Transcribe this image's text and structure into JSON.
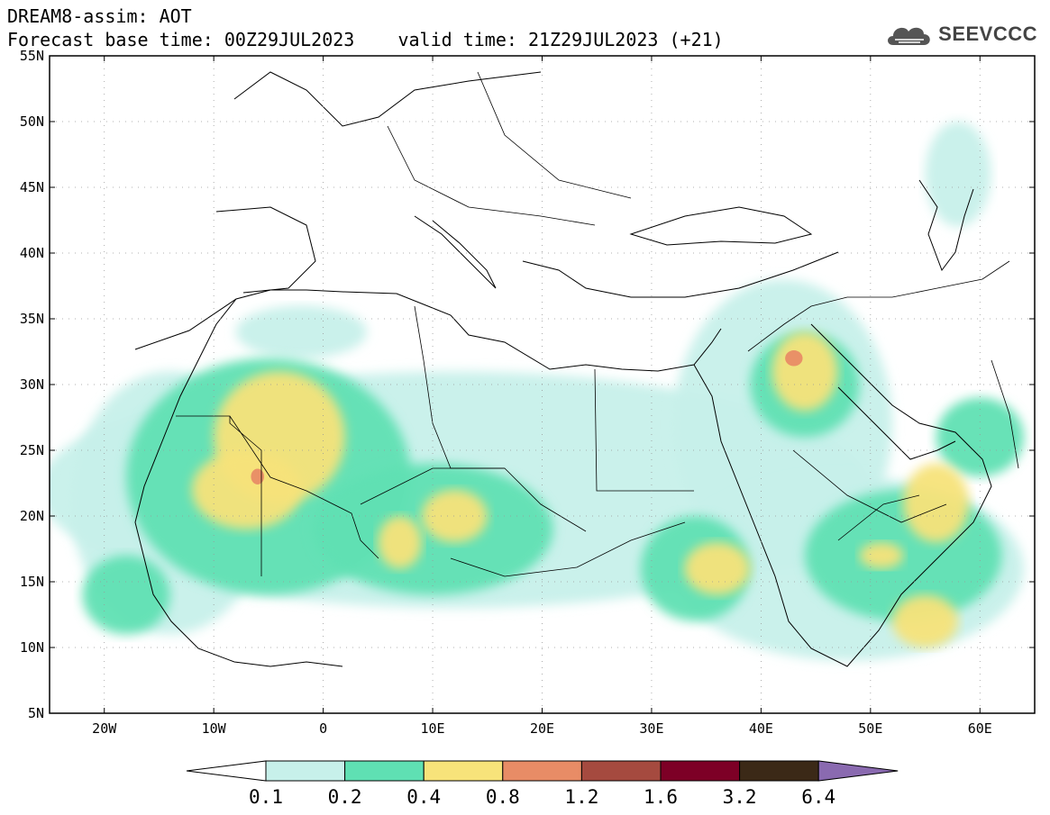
{
  "header": {
    "line1": "DREAM8-assim: AOT",
    "line2": "Forecast base time: 00Z29JUL2023    valid time: 21Z29JUL2023 (+21)",
    "logo_text": "SEEVCCC",
    "logo_icon": "cloud-icon"
  },
  "map": {
    "lat_range": [
      5,
      55
    ],
    "lon_range": [
      -25,
      65
    ],
    "lat_labels": [
      "55N",
      "50N",
      "45N",
      "40N",
      "35N",
      "30N",
      "25N",
      "20N",
      "15N",
      "10N",
      "5N"
    ],
    "lon_labels": [
      "20W",
      "10W",
      "0",
      "10E",
      "20E",
      "30E",
      "40E",
      "50E",
      "60E"
    ],
    "dust_regions": [
      {
        "level": 0,
        "lon": 12,
        "lat": 22,
        "rx": 38,
        "ry": 9
      },
      {
        "level": 0,
        "lon": -14,
        "lat": 21,
        "rx": 9,
        "ry": 10
      },
      {
        "level": 0,
        "lon": 42,
        "lat": 27,
        "rx": 10,
        "ry": 11
      },
      {
        "level": 0,
        "lon": 48,
        "lat": 16,
        "rx": 16,
        "ry": 7
      },
      {
        "level": 0,
        "lon": 58,
        "lat": 46,
        "rx": 3,
        "ry": 4
      },
      {
        "level": 0,
        "lon": -2,
        "lat": 34,
        "rx": 6,
        "ry": 2
      },
      {
        "level": 1,
        "lon": -5,
        "lat": 23,
        "rx": 13,
        "ry": 9
      },
      {
        "level": 1,
        "lon": 10,
        "lat": 19,
        "rx": 11,
        "ry": 5
      },
      {
        "level": 1,
        "lon": -18,
        "lat": 14,
        "rx": 4,
        "ry": 3
      },
      {
        "level": 1,
        "lon": 34,
        "lat": 16,
        "rx": 5,
        "ry": 4
      },
      {
        "level": 1,
        "lon": 44,
        "lat": 30,
        "rx": 5,
        "ry": 4
      },
      {
        "level": 1,
        "lon": 53,
        "lat": 17,
        "rx": 9,
        "ry": 5
      },
      {
        "level": 1,
        "lon": 60,
        "lat": 26,
        "rx": 4,
        "ry": 3
      },
      {
        "level": 2,
        "lon": -4,
        "lat": 26,
        "rx": 6,
        "ry": 5
      },
      {
        "level": 2,
        "lon": -7,
        "lat": 22,
        "rx": 5,
        "ry": 3
      },
      {
        "level": 2,
        "lon": 7,
        "lat": 18,
        "rx": 2,
        "ry": 2
      },
      {
        "level": 2,
        "lon": 12,
        "lat": 20,
        "rx": 3,
        "ry": 2
      },
      {
        "level": 2,
        "lon": 36,
        "lat": 16,
        "rx": 3,
        "ry": 2
      },
      {
        "level": 2,
        "lon": 44,
        "lat": 31,
        "rx": 3,
        "ry": 3
      },
      {
        "level": 2,
        "lon": 56,
        "lat": 21,
        "rx": 3,
        "ry": 3
      },
      {
        "level": 2,
        "lon": 55,
        "lat": 12,
        "rx": 3,
        "ry": 2
      },
      {
        "level": 2,
        "lon": 51,
        "lat": 17,
        "rx": 2,
        "ry": 1
      },
      {
        "level": 3,
        "lon": -6,
        "lat": 23,
        "rx": 0.6,
        "ry": 0.6
      },
      {
        "level": 3,
        "lon": 43,
        "lat": 32,
        "rx": 0.8,
        "ry": 0.6
      }
    ]
  },
  "colorbar": {
    "labels": [
      "0.1",
      "0.2",
      "0.4",
      "0.8",
      "1.2",
      "1.6",
      "3.2",
      "6.4"
    ],
    "colors": [
      "#ffffff",
      "#c7f0ea",
      "#5fe0b3",
      "#f7e37a",
      "#e88c66",
      "#a54a3f",
      "#7d0026",
      "#3b2917",
      "#8a6ab0"
    ]
  }
}
